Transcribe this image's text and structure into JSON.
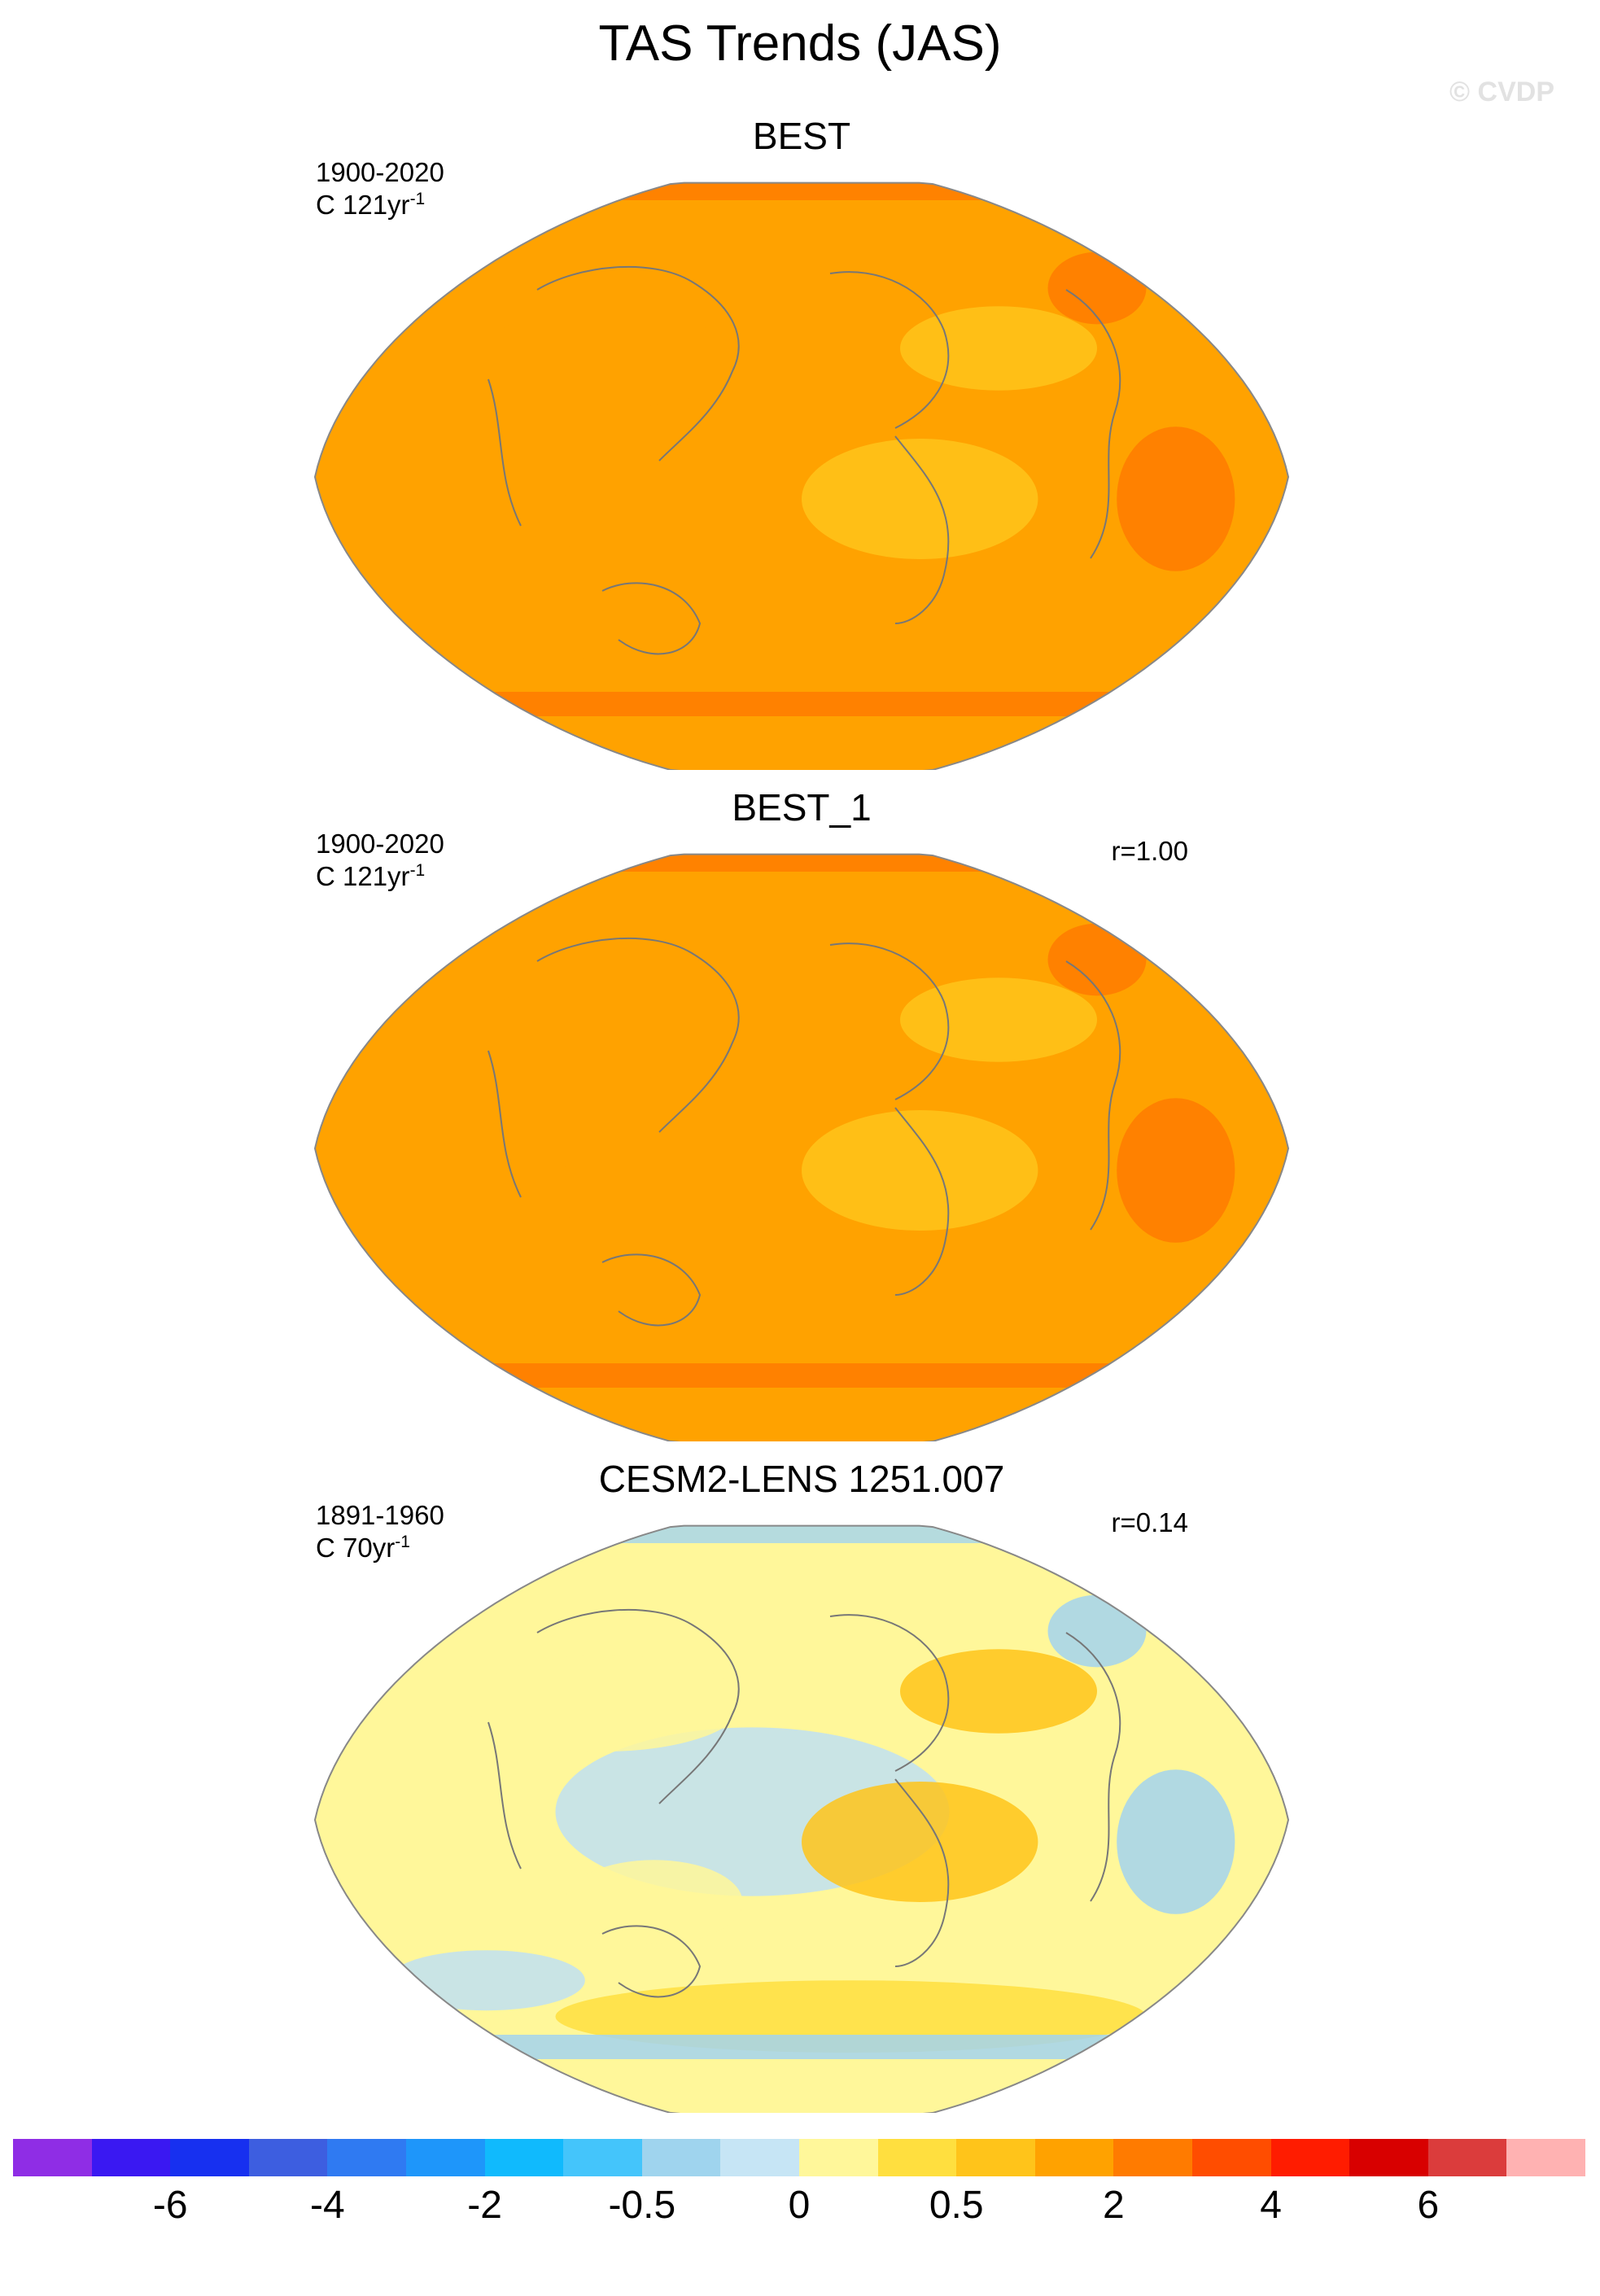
{
  "title": "TAS Trends (JAS)",
  "watermark": "© CVDP",
  "panels": [
    {
      "name": "BEST",
      "period": "1900-2020",
      "units_prefix": "C 121yr",
      "units_exp": "-1",
      "corr": "",
      "palette": [
        "#ffa200",
        "#ffa200",
        "#ffc41a",
        "#ffa200",
        "#ff7b00",
        "#ffa200"
      ]
    },
    {
      "name": "BEST_1",
      "period": "1900-2020",
      "units_prefix": "C 121yr",
      "units_exp": "-1",
      "corr": "r=1.00",
      "palette": [
        "#ffa200",
        "#ffa200",
        "#ffc41a",
        "#ffa200",
        "#ff7b00",
        "#ffa200"
      ]
    },
    {
      "name": "CESM2-LENS 1251.007",
      "period": "1891-1960",
      "units_prefix": "C 70yr",
      "units_exp": "-1",
      "corr": "r=0.14",
      "palette": [
        "#fff79a",
        "#bfe0f2",
        "#ffc41a",
        "#fff79a",
        "#a3d3ef",
        "#ffdf3f"
      ]
    }
  ],
  "colorbar": {
    "colors": [
      "#8f2de5",
      "#3a18f2",
      "#1730f0",
      "#3d5ee0",
      "#2f7af2",
      "#1e96fa",
      "#10bafd",
      "#44c5fb",
      "#9fd4ee",
      "#c6e5f5",
      "#fff79a",
      "#ffdf3f",
      "#ffc41a",
      "#ffa200",
      "#ff7b00",
      "#ff4d00",
      "#ff1c00",
      "#d80000",
      "#db3c3c",
      "#ffb2b2"
    ],
    "tick_labels": [
      "-6",
      "-4",
      "-2",
      "-0.5",
      "0",
      "0.5",
      "2",
      "4",
      "6"
    ]
  }
}
